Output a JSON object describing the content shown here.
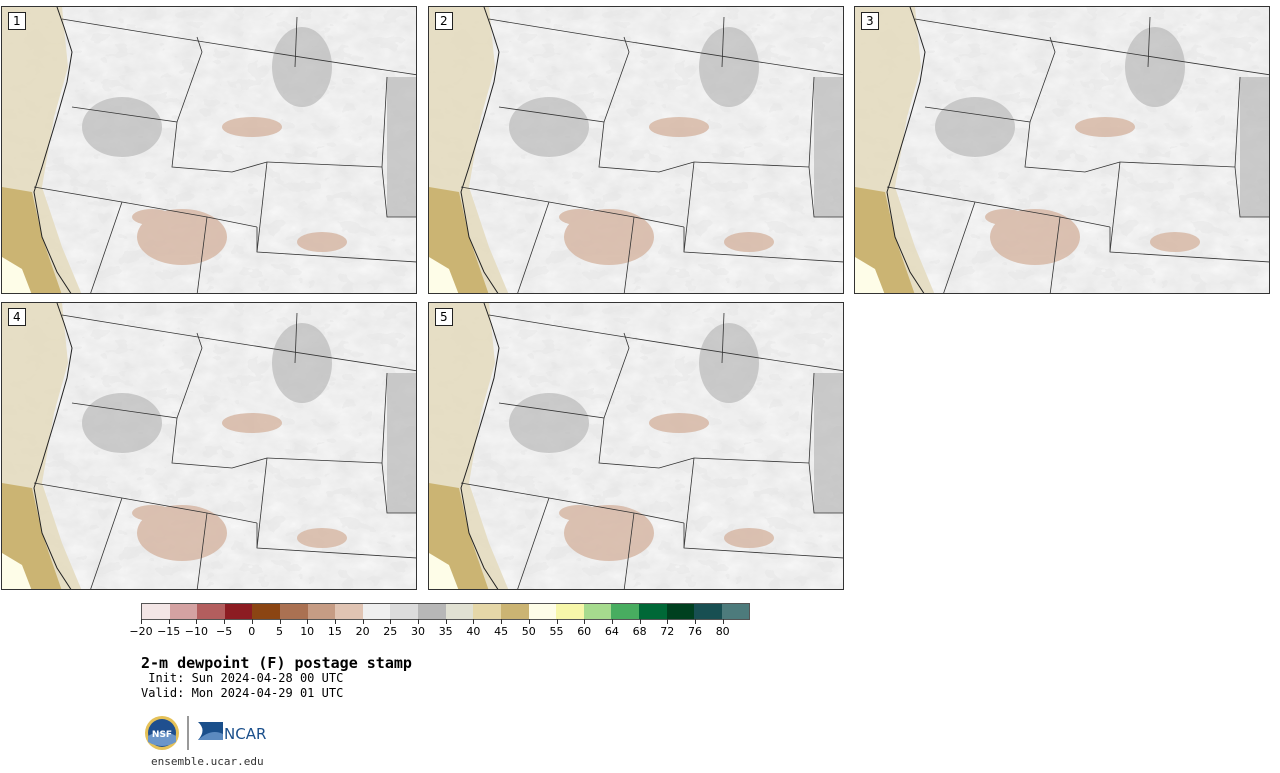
{
  "panels": [
    {
      "label": "1"
    },
    {
      "label": "2"
    },
    {
      "label": "3"
    },
    {
      "label": "4"
    },
    {
      "label": "5"
    }
  ],
  "legend": {
    "ticks": [
      "−20",
      "−15",
      "−10",
      "−5",
      "0",
      "5",
      "10",
      "15",
      "20",
      "25",
      "30",
      "35",
      "40",
      "45",
      "50",
      "55",
      "60",
      "64",
      "68",
      "72",
      "76",
      "80"
    ],
    "colors": [
      "#f3e6e6",
      "#d4a2a2",
      "#b35e5e",
      "#8c1c22",
      "#8b4513",
      "#aa7152",
      "#c69c84",
      "#e0c4b3",
      "#efefef",
      "#dcdcdc",
      "#b7b7b7",
      "#e1e1d3",
      "#e5d7a8",
      "#cbb473",
      "#fefde8",
      "#f7f7aa",
      "#a6db8e",
      "#48ad60",
      "#006837",
      "#00401f",
      "#184f52",
      "#4d7b7c"
    ]
  },
  "title": "2-m dewpoint (F) postage stamp",
  "init_line": " Init: Sun 2024-04-28 00 UTC",
  "valid_line": "Valid: Mon 2024-04-29 01 UTC",
  "logos": {
    "nsf": "NSF",
    "ncar": "NCAR"
  },
  "url": "ensemble.ucar.edu"
}
